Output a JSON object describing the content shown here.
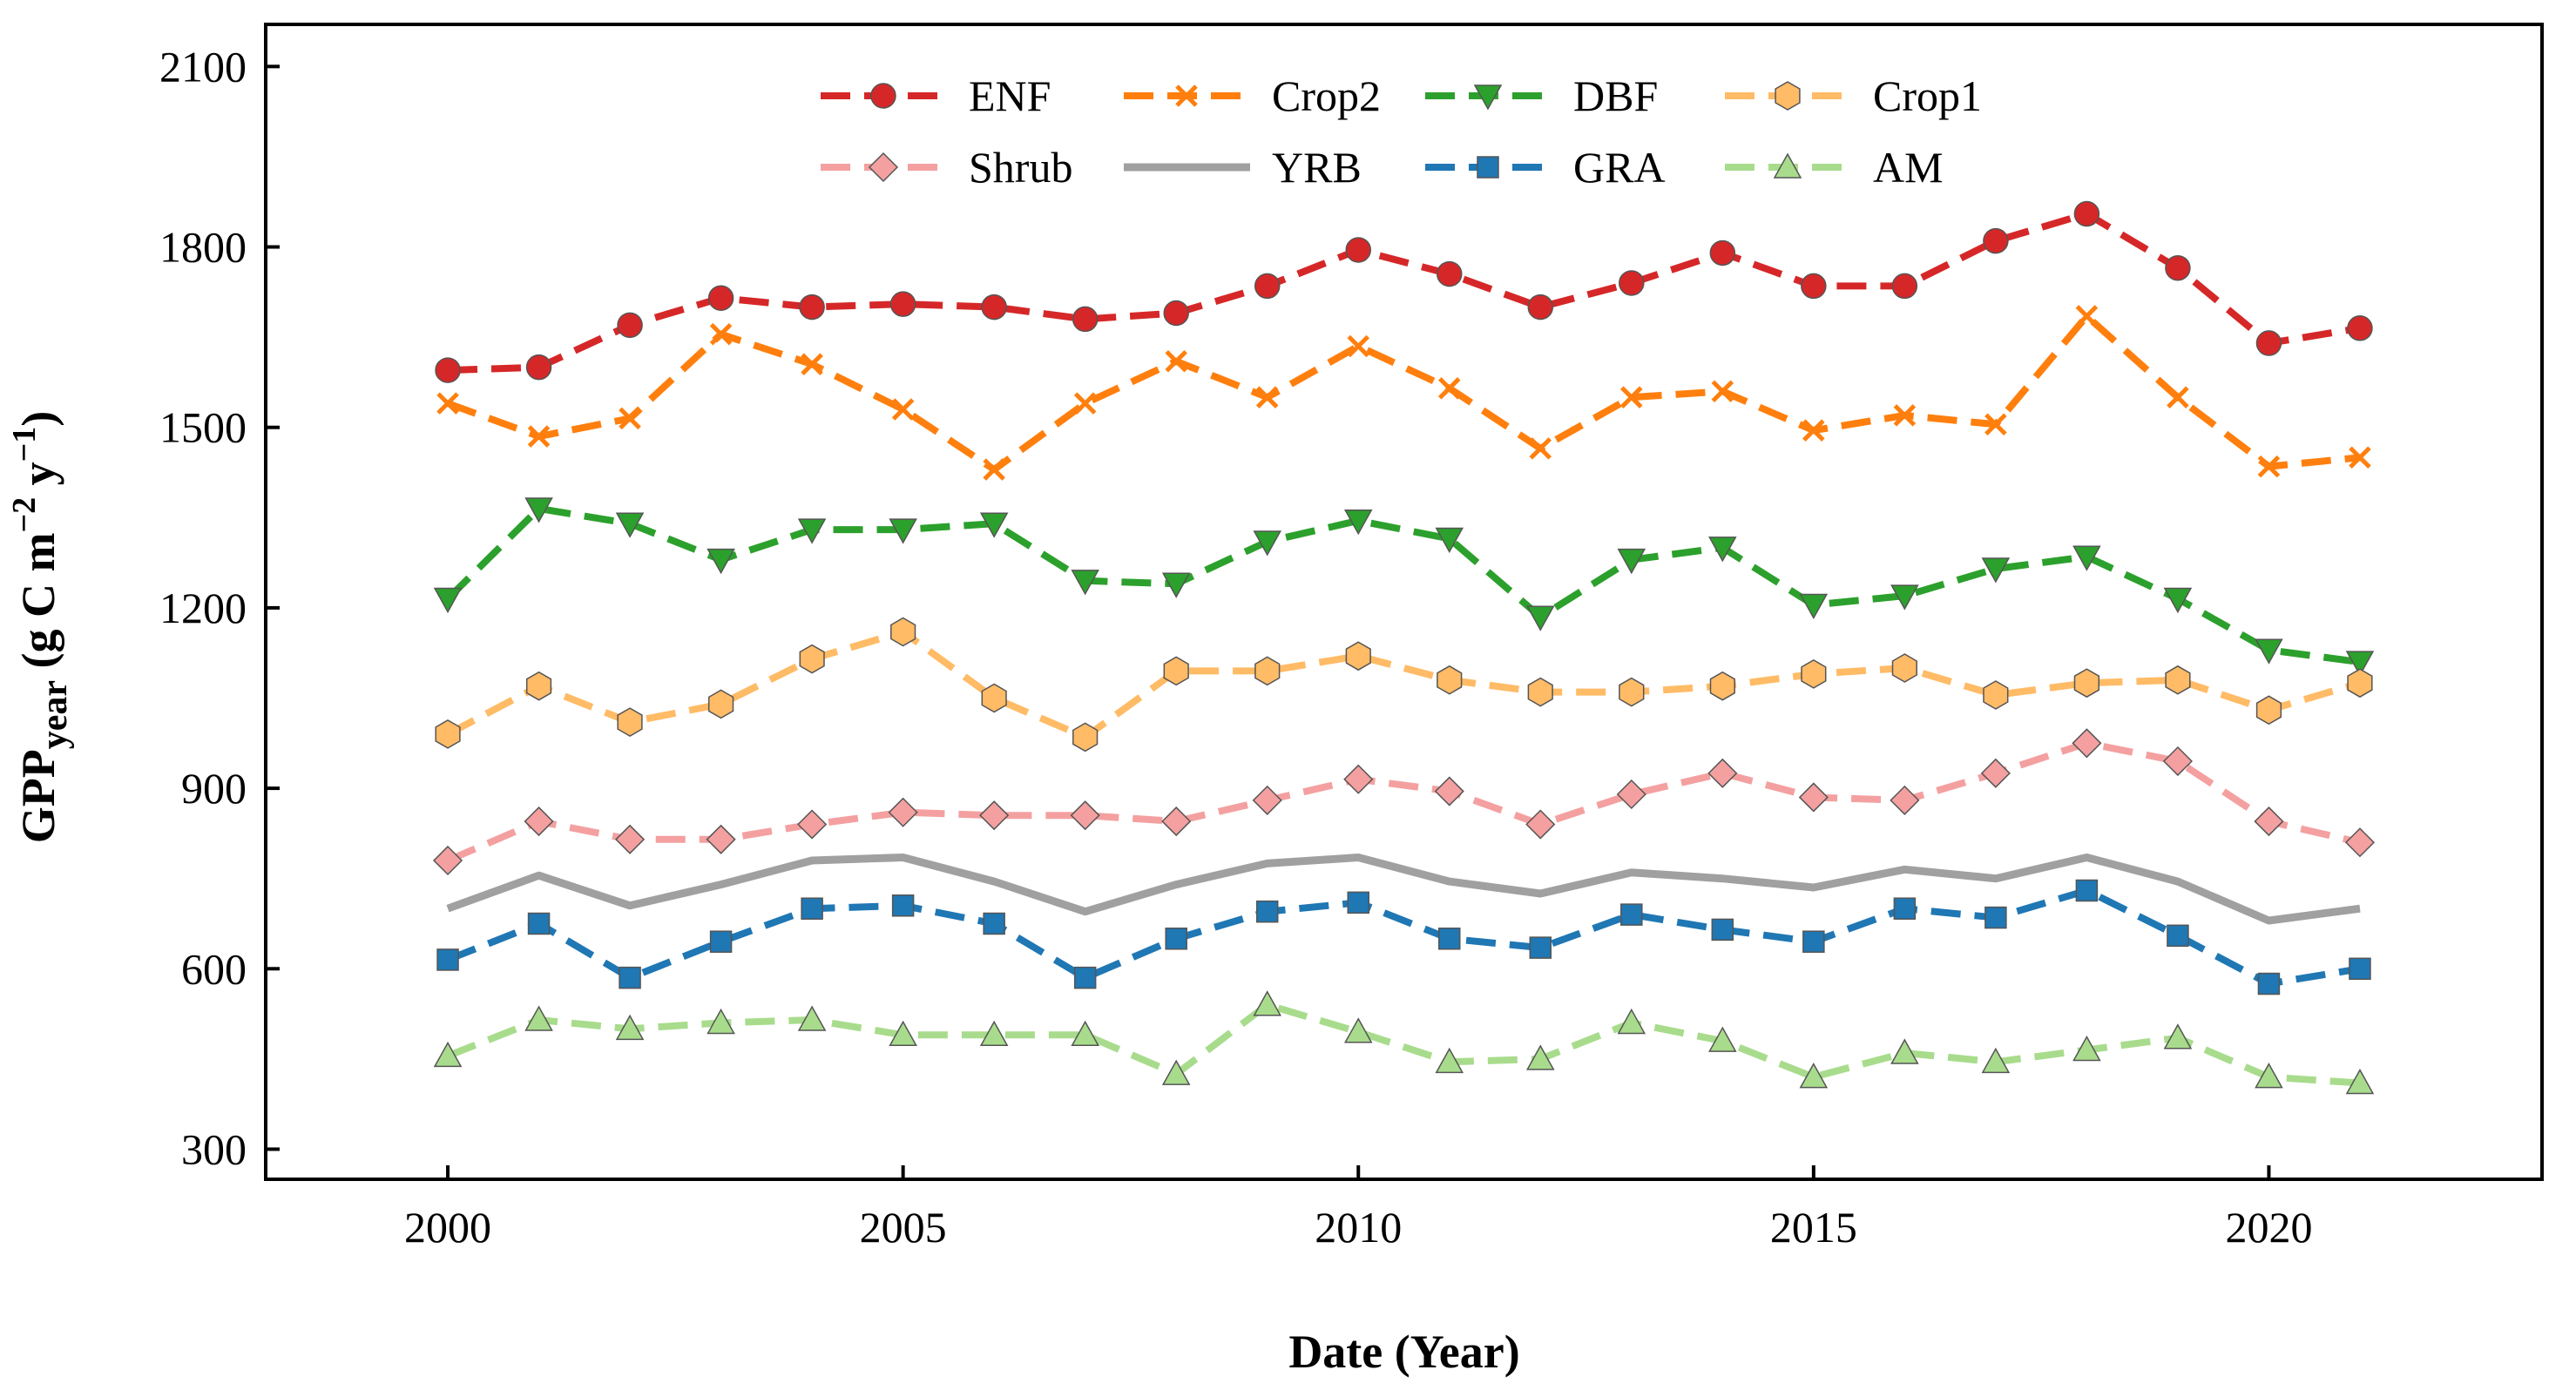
{
  "chart_data": {
    "type": "line",
    "title": "",
    "xlabel": "Date (Year)",
    "ylabel": {
      "main": "GPP",
      "subscript": "year",
      "unit_open": " (g C m",
      "exp1": "−2",
      "unit_mid": " y",
      "exp2": "−1",
      "unit_close": ")"
    },
    "xlim": [
      1998,
      2023
    ],
    "ylim": [
      250,
      2170
    ],
    "xticks": [
      2000,
      2005,
      2010,
      2015,
      2020
    ],
    "yticks": [
      300,
      600,
      900,
      1200,
      1500,
      1800,
      2100
    ],
    "grid": false,
    "legend": "top-center",
    "x": [
      2000,
      2001,
      2002,
      2003,
      2004,
      2005,
      2006,
      2007,
      2008,
      2009,
      2010,
      2011,
      2012,
      2013,
      2014,
      2015,
      2016,
      2017,
      2018,
      2019,
      2020,
      2021
    ],
    "series": [
      {
        "name": "ENF",
        "color": "#d62728",
        "marker": "circle",
        "dashed": true,
        "values": [
          1595,
          1600,
          1670,
          1715,
          1700,
          1705,
          1700,
          1680,
          1690,
          1735,
          1795,
          1755,
          1700,
          1740,
          1790,
          1735,
          1735,
          1810,
          1855,
          1765,
          1640,
          1665
        ]
      },
      {
        "name": "Crop2",
        "color": "#ff7f0e",
        "marker": "x",
        "dashed": true,
        "values": [
          1540,
          1485,
          1515,
          1655,
          1605,
          1530,
          1430,
          1540,
          1610,
          1550,
          1635,
          1565,
          1465,
          1550,
          1560,
          1495,
          1520,
          1505,
          1685,
          1550,
          1435,
          1450
        ]
      },
      {
        "name": "DBF",
        "color": "#2ca02c",
        "marker": "triangle-down",
        "dashed": true,
        "values": [
          1215,
          1365,
          1340,
          1280,
          1330,
          1330,
          1340,
          1245,
          1240,
          1310,
          1345,
          1315,
          1185,
          1280,
          1300,
          1205,
          1220,
          1265,
          1285,
          1215,
          1130,
          1110
        ]
      },
      {
        "name": "Crop1",
        "color": "#ffbb66",
        "marker": "hexagon",
        "dashed": true,
        "values": [
          990,
          1070,
          1010,
          1040,
          1115,
          1160,
          1050,
          985,
          1095,
          1095,
          1120,
          1080,
          1060,
          1060,
          1070,
          1090,
          1100,
          1055,
          1075,
          1080,
          1030,
          1075
        ]
      },
      {
        "name": "Shrub",
        "color": "#f4a0a0",
        "marker": "diamond",
        "dashed": true,
        "values": [
          780,
          845,
          815,
          815,
          840,
          860,
          855,
          855,
          845,
          880,
          915,
          895,
          840,
          890,
          925,
          885,
          880,
          925,
          975,
          945,
          845,
          810
        ]
      },
      {
        "name": "YRB",
        "color": "#a0a0a0",
        "marker": "none",
        "dashed": false,
        "values": [
          700,
          755,
          705,
          740,
          780,
          785,
          745,
          695,
          740,
          775,
          785,
          745,
          725,
          760,
          750,
          735,
          765,
          750,
          785,
          745,
          680,
          700
        ]
      },
      {
        "name": "GRA",
        "color": "#1f77b4",
        "marker": "square",
        "dashed": true,
        "values": [
          615,
          675,
          585,
          645,
          700,
          705,
          675,
          585,
          650,
          695,
          710,
          650,
          635,
          690,
          665,
          645,
          700,
          685,
          730,
          655,
          575,
          600
        ]
      },
      {
        "name": "AM",
        "color": "#a8dc8c",
        "marker": "triangle-up",
        "dashed": true,
        "values": [
          455,
          515,
          500,
          510,
          515,
          490,
          490,
          490,
          425,
          540,
          495,
          445,
          450,
          510,
          480,
          420,
          460,
          445,
          465,
          485,
          420,
          410
        ]
      }
    ]
  }
}
